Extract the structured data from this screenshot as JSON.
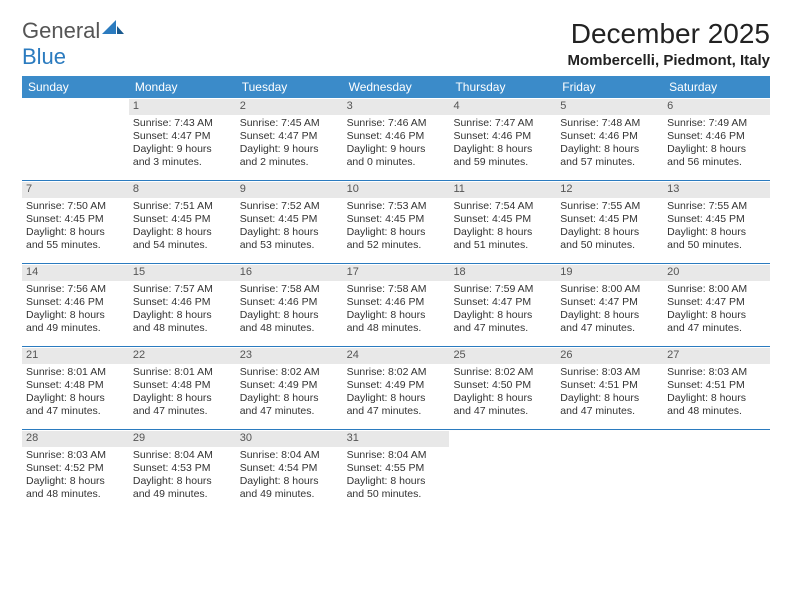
{
  "brand": {
    "part1": "General",
    "part2": "Blue"
  },
  "title": "December 2025",
  "location": "Mombercelli, Piedmont, Italy",
  "colors": {
    "header_bar": "#3b8bc9",
    "week_divider": "#2b7bbf",
    "daynum_bg": "#e8e8e8",
    "text": "#333333",
    "title_text": "#222222",
    "brand_gray": "#555555",
    "brand_blue": "#2b7bbf",
    "background": "#ffffff"
  },
  "typography": {
    "title_fontsize": 28,
    "location_fontsize": 15,
    "dow_fontsize": 12,
    "cell_fontsize": 10.5,
    "daynum_fontsize": 11
  },
  "days_of_week": [
    "Sunday",
    "Monday",
    "Tuesday",
    "Wednesday",
    "Thursday",
    "Friday",
    "Saturday"
  ],
  "weeks": [
    [
      null,
      {
        "n": "1",
        "sr": "Sunrise: 7:43 AM",
        "ss": "Sunset: 4:47 PM",
        "d1": "Daylight: 9 hours",
        "d2": "and 3 minutes."
      },
      {
        "n": "2",
        "sr": "Sunrise: 7:45 AM",
        "ss": "Sunset: 4:47 PM",
        "d1": "Daylight: 9 hours",
        "d2": "and 2 minutes."
      },
      {
        "n": "3",
        "sr": "Sunrise: 7:46 AM",
        "ss": "Sunset: 4:46 PM",
        "d1": "Daylight: 9 hours",
        "d2": "and 0 minutes."
      },
      {
        "n": "4",
        "sr": "Sunrise: 7:47 AM",
        "ss": "Sunset: 4:46 PM",
        "d1": "Daylight: 8 hours",
        "d2": "and 59 minutes."
      },
      {
        "n": "5",
        "sr": "Sunrise: 7:48 AM",
        "ss": "Sunset: 4:46 PM",
        "d1": "Daylight: 8 hours",
        "d2": "and 57 minutes."
      },
      {
        "n": "6",
        "sr": "Sunrise: 7:49 AM",
        "ss": "Sunset: 4:46 PM",
        "d1": "Daylight: 8 hours",
        "d2": "and 56 minutes."
      }
    ],
    [
      {
        "n": "7",
        "sr": "Sunrise: 7:50 AM",
        "ss": "Sunset: 4:45 PM",
        "d1": "Daylight: 8 hours",
        "d2": "and 55 minutes."
      },
      {
        "n": "8",
        "sr": "Sunrise: 7:51 AM",
        "ss": "Sunset: 4:45 PM",
        "d1": "Daylight: 8 hours",
        "d2": "and 54 minutes."
      },
      {
        "n": "9",
        "sr": "Sunrise: 7:52 AM",
        "ss": "Sunset: 4:45 PM",
        "d1": "Daylight: 8 hours",
        "d2": "and 53 minutes."
      },
      {
        "n": "10",
        "sr": "Sunrise: 7:53 AM",
        "ss": "Sunset: 4:45 PM",
        "d1": "Daylight: 8 hours",
        "d2": "and 52 minutes."
      },
      {
        "n": "11",
        "sr": "Sunrise: 7:54 AM",
        "ss": "Sunset: 4:45 PM",
        "d1": "Daylight: 8 hours",
        "d2": "and 51 minutes."
      },
      {
        "n": "12",
        "sr": "Sunrise: 7:55 AM",
        "ss": "Sunset: 4:45 PM",
        "d1": "Daylight: 8 hours",
        "d2": "and 50 minutes."
      },
      {
        "n": "13",
        "sr": "Sunrise: 7:55 AM",
        "ss": "Sunset: 4:45 PM",
        "d1": "Daylight: 8 hours",
        "d2": "and 50 minutes."
      }
    ],
    [
      {
        "n": "14",
        "sr": "Sunrise: 7:56 AM",
        "ss": "Sunset: 4:46 PM",
        "d1": "Daylight: 8 hours",
        "d2": "and 49 minutes."
      },
      {
        "n": "15",
        "sr": "Sunrise: 7:57 AM",
        "ss": "Sunset: 4:46 PM",
        "d1": "Daylight: 8 hours",
        "d2": "and 48 minutes."
      },
      {
        "n": "16",
        "sr": "Sunrise: 7:58 AM",
        "ss": "Sunset: 4:46 PM",
        "d1": "Daylight: 8 hours",
        "d2": "and 48 minutes."
      },
      {
        "n": "17",
        "sr": "Sunrise: 7:58 AM",
        "ss": "Sunset: 4:46 PM",
        "d1": "Daylight: 8 hours",
        "d2": "and 48 minutes."
      },
      {
        "n": "18",
        "sr": "Sunrise: 7:59 AM",
        "ss": "Sunset: 4:47 PM",
        "d1": "Daylight: 8 hours",
        "d2": "and 47 minutes."
      },
      {
        "n": "19",
        "sr": "Sunrise: 8:00 AM",
        "ss": "Sunset: 4:47 PM",
        "d1": "Daylight: 8 hours",
        "d2": "and 47 minutes."
      },
      {
        "n": "20",
        "sr": "Sunrise: 8:00 AM",
        "ss": "Sunset: 4:47 PM",
        "d1": "Daylight: 8 hours",
        "d2": "and 47 minutes."
      }
    ],
    [
      {
        "n": "21",
        "sr": "Sunrise: 8:01 AM",
        "ss": "Sunset: 4:48 PM",
        "d1": "Daylight: 8 hours",
        "d2": "and 47 minutes."
      },
      {
        "n": "22",
        "sr": "Sunrise: 8:01 AM",
        "ss": "Sunset: 4:48 PM",
        "d1": "Daylight: 8 hours",
        "d2": "and 47 minutes."
      },
      {
        "n": "23",
        "sr": "Sunrise: 8:02 AM",
        "ss": "Sunset: 4:49 PM",
        "d1": "Daylight: 8 hours",
        "d2": "and 47 minutes."
      },
      {
        "n": "24",
        "sr": "Sunrise: 8:02 AM",
        "ss": "Sunset: 4:49 PM",
        "d1": "Daylight: 8 hours",
        "d2": "and 47 minutes."
      },
      {
        "n": "25",
        "sr": "Sunrise: 8:02 AM",
        "ss": "Sunset: 4:50 PM",
        "d1": "Daylight: 8 hours",
        "d2": "and 47 minutes."
      },
      {
        "n": "26",
        "sr": "Sunrise: 8:03 AM",
        "ss": "Sunset: 4:51 PM",
        "d1": "Daylight: 8 hours",
        "d2": "and 47 minutes."
      },
      {
        "n": "27",
        "sr": "Sunrise: 8:03 AM",
        "ss": "Sunset: 4:51 PM",
        "d1": "Daylight: 8 hours",
        "d2": "and 48 minutes."
      }
    ],
    [
      {
        "n": "28",
        "sr": "Sunrise: 8:03 AM",
        "ss": "Sunset: 4:52 PM",
        "d1": "Daylight: 8 hours",
        "d2": "and 48 minutes."
      },
      {
        "n": "29",
        "sr": "Sunrise: 8:04 AM",
        "ss": "Sunset: 4:53 PM",
        "d1": "Daylight: 8 hours",
        "d2": "and 49 minutes."
      },
      {
        "n": "30",
        "sr": "Sunrise: 8:04 AM",
        "ss": "Sunset: 4:54 PM",
        "d1": "Daylight: 8 hours",
        "d2": "and 49 minutes."
      },
      {
        "n": "31",
        "sr": "Sunrise: 8:04 AM",
        "ss": "Sunset: 4:55 PM",
        "d1": "Daylight: 8 hours",
        "d2": "and 50 minutes."
      },
      null,
      null,
      null
    ]
  ]
}
